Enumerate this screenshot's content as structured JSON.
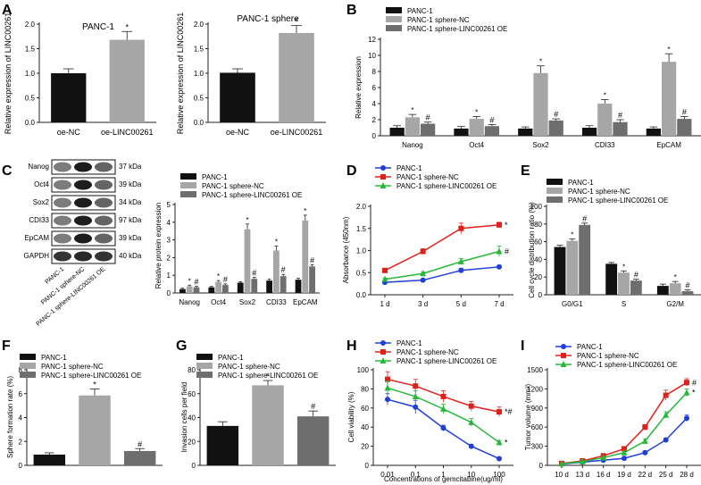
{
  "colors": {
    "black": "#111111",
    "lightgray": "#a6a6a6",
    "darkgray": "#6e6e6e",
    "blue": "#1f3fd6",
    "red": "#e0201b",
    "green": "#27b83a"
  },
  "chart_data": [
    {
      "id": "A1",
      "panel": "A",
      "type": "bar",
      "title": "PANC-1",
      "ylabel": "Relative expression of LINC00261",
      "categories": [
        "oe-NC",
        "oe-LINC00261"
      ],
      "values": [
        1.0,
        1.68
      ],
      "errors": [
        0.09,
        0.17
      ],
      "colors": [
        "black",
        "lightgray"
      ],
      "marks": [
        "",
        "*"
      ],
      "ylim": [
        0,
        2
      ]
    },
    {
      "id": "A2",
      "type": "bar",
      "title": "PANC-1 sphere",
      "ylabel": "Relative expression of LINC00261",
      "categories": [
        "oe-NC",
        "oe-LINC00261"
      ],
      "values": [
        1.01,
        1.82
      ],
      "errors": [
        0.08,
        0.15
      ],
      "colors": [
        "black",
        "lightgray"
      ],
      "marks": [
        "",
        "*"
      ],
      "ylim": [
        0,
        2
      ]
    },
    {
      "id": "B",
      "panel": "B",
      "type": "bar",
      "ylabel": "Relative expression",
      "categories": [
        "Nanog",
        "Oct4",
        "Sox2",
        "CDI33",
        "EpCAM"
      ],
      "yticks": [
        0,
        2,
        4,
        6,
        8,
        10,
        12
      ],
      "ylim": [
        0,
        12
      ],
      "legend": [
        "PANC-1",
        "PANC-1 sphere-NC",
        "PANC-1 sphere-LINC00261 OE"
      ],
      "series": [
        {
          "name": "PANC-1",
          "color": "black",
          "values": [
            1.0,
            0.9,
            0.9,
            1.0,
            0.9
          ],
          "errors": [
            0.25,
            0.25,
            0.2,
            0.25,
            0.2
          ],
          "marks": [
            "",
            "",
            "",
            "",
            ""
          ]
        },
        {
          "name": "PANC-1 sphere-NC",
          "color": "lightgray",
          "values": [
            2.3,
            2.1,
            7.8,
            4.0,
            9.2
          ],
          "errors": [
            0.35,
            0.3,
            0.9,
            0.5,
            1.0
          ],
          "marks": [
            "*",
            "*",
            "*",
            "*",
            "*"
          ]
        },
        {
          "name": "PANC-1 sphere-LINC00261 OE",
          "color": "darkgray",
          "values": [
            1.5,
            1.2,
            1.9,
            1.7,
            2.1
          ],
          "errors": [
            0.2,
            0.2,
            0.2,
            0.3,
            0.3
          ],
          "marks": [
            "#",
            "#",
            "#",
            "#",
            "#"
          ]
        }
      ]
    },
    {
      "id": "C",
      "panel": "C",
      "type": "bar",
      "ylabel": "Relative protein expression",
      "categories": [
        "Nanog",
        "Oct4",
        "Sox2",
        "CDI33",
        "EpCAM"
      ],
      "yticks": [
        0,
        1,
        2,
        3,
        4,
        5
      ],
      "ylim": [
        0,
        5
      ],
      "legend": [
        "PANC-1",
        "PANC-1 sphere-NC",
        "PANC-1 sphere-LINC00261 OE"
      ],
      "series": [
        {
          "name": "PANC-1",
          "color": "black",
          "values": [
            0.22,
            0.32,
            0.58,
            0.7,
            0.75
          ],
          "errors": [
            0.05,
            0.05,
            0.06,
            0.08,
            0.08
          ],
          "marks": [
            "",
            "",
            "",
            "",
            ""
          ]
        },
        {
          "name": "PANC-1 sphere-NC",
          "color": "lightgray",
          "values": [
            0.38,
            0.62,
            3.6,
            2.4,
            4.1
          ],
          "errors": [
            0.06,
            0.08,
            0.3,
            0.25,
            0.3
          ],
          "marks": [
            "*",
            "*",
            "*",
            "*",
            "*"
          ]
        },
        {
          "name": "PANC-1 sphere-LINC00261 OE",
          "color": "darkgray",
          "values": [
            0.32,
            0.45,
            0.8,
            0.95,
            1.5
          ],
          "errors": [
            0.05,
            0.06,
            0.08,
            0.1,
            0.1
          ],
          "marks": [
            "#",
            "#",
            "#",
            "#",
            "#"
          ]
        }
      ]
    },
    {
      "id": "D",
      "panel": "D",
      "type": "line",
      "ylabel": "Absorbance (450nm)",
      "categories": [
        "1 d",
        "3 d",
        "5 d",
        "7 d"
      ],
      "yticks": [
        0.0,
        0.5,
        1.0,
        1.5,
        2.0
      ],
      "ylim": [
        0,
        2
      ],
      "legend": [
        "PANC-1",
        "PANC-1 sphere-NC",
        "PANC-1 sphere-LINC00261 OE"
      ],
      "series": [
        {
          "name": "PANC-1",
          "color": "blue",
          "marker": "circle",
          "values": [
            0.28,
            0.33,
            0.55,
            0.63
          ],
          "errors": [
            0.03,
            0.03,
            0.05,
            0.04
          ],
          "mark": ""
        },
        {
          "name": "PANC-1 sphere-NC",
          "color": "red",
          "marker": "square",
          "values": [
            0.55,
            0.98,
            1.5,
            1.58
          ],
          "errors": [
            0.03,
            0.06,
            0.12,
            0.06
          ],
          "mark": "*"
        },
        {
          "name": "PANC-1 sphere-LINC00261 OE",
          "color": "green",
          "marker": "triangle",
          "values": [
            0.35,
            0.48,
            0.75,
            0.98
          ],
          "errors": [
            0.03,
            0.04,
            0.07,
            0.12
          ],
          "mark": "#"
        }
      ]
    },
    {
      "id": "E",
      "panel": "E",
      "type": "bar",
      "ylabel": "Cell cycle distribution ratio (%)",
      "categories": [
        "G0/G1",
        "S",
        "G2/M"
      ],
      "yticks": [
        0,
        20,
        40,
        60,
        80,
        100
      ],
      "ylim": [
        0,
        100
      ],
      "legend": [
        "PANC-1",
        "PANC-1 sphere-NC",
        "PANC-1 sphere-LINC00261 OE"
      ],
      "series": [
        {
          "name": "PANC-1",
          "color": "black",
          "values": [
            54,
            35,
            10
          ],
          "errors": [
            2,
            1.5,
            2
          ],
          "marks": [
            "",
            "",
            ""
          ]
        },
        {
          "name": "PANC-1 sphere-NC",
          "color": "lightgray",
          "values": [
            61,
            25,
            13
          ],
          "errors": [
            2,
            2,
            2
          ],
          "marks": [
            "*",
            "*",
            "*"
          ]
        },
        {
          "name": "PANC-1 sphere-LINC00261 OE",
          "color": "darkgray",
          "values": [
            79,
            16,
            4
          ],
          "errors": [
            2,
            1.5,
            1.5
          ],
          "marks": [
            "#",
            "#",
            "#"
          ]
        }
      ]
    },
    {
      "id": "F",
      "panel": "F",
      "type": "bar",
      "ylabel": "Sphere formation rate (%)",
      "categories": [
        "PANC-1",
        "PANC-1 sphere-NC",
        "PANC-1 sphere-LINC00261 OE"
      ],
      "values": [
        0.9,
        5.85,
        1.2
      ],
      "errors": [
        0.15,
        0.55,
        0.2
      ],
      "colors": [
        "black",
        "lightgray",
        "darkgray"
      ],
      "marks": [
        "",
        "*",
        "#"
      ],
      "yticks": [
        0,
        2,
        4,
        6,
        8
      ],
      "ylim": [
        0,
        8
      ],
      "legend": [
        "PANC-1",
        "PANC-1 sphere-NC",
        "PANC-1 sphere-LINC00261 OE"
      ]
    },
    {
      "id": "G",
      "panel": "G",
      "type": "bar",
      "ylabel": "Invasion cells per field",
      "categories": [
        "PANC-1",
        "PANC-1 sphere-NC",
        "PANC-1 sphere-LINC00261 OE"
      ],
      "values": [
        33,
        67,
        41
      ],
      "errors": [
        3.5,
        4,
        4.5
      ],
      "colors": [
        "black",
        "lightgray",
        "darkgray"
      ],
      "marks": [
        "",
        "*",
        "#"
      ],
      "yticks": [
        0,
        20,
        40,
        60,
        80
      ],
      "ylim": [
        0,
        80
      ],
      "legend": [
        "PANC-1",
        "PANC-1 sphere-NC",
        "PANC-1 sphere-LINC00261 OE"
      ]
    },
    {
      "id": "H",
      "panel": "H",
      "type": "line",
      "ylabel": "Cell viability (%)",
      "xlabel": "Concentrations of gemcitabine(ug/ml)",
      "categories": [
        "0.01",
        "0.1",
        "1",
        "10",
        "100"
      ],
      "yticks": [
        0,
        20,
        40,
        60,
        80,
        100
      ],
      "ylim": [
        0,
        100
      ],
      "legend": [
        "PANC-1",
        "PANC-1 sphere-NC",
        "PANC-1 sphere-LINC00261 OE"
      ],
      "series": [
        {
          "name": "PANC-1",
          "color": "blue",
          "marker": "circle",
          "values": [
            69,
            61,
            39,
            20,
            7
          ],
          "errors": [
            6,
            7,
            3,
            2,
            1
          ],
          "mark": ""
        },
        {
          "name": "PANC-1 sphere-NC",
          "color": "red",
          "marker": "square",
          "values": [
            90,
            83,
            72,
            62,
            56
          ],
          "errors": [
            8,
            7,
            6,
            5,
            5
          ],
          "mark": "*#"
        },
        {
          "name": "PANC-1 sphere-LINC00261 OE",
          "color": "green",
          "marker": "triangle",
          "values": [
            81,
            72,
            59,
            45,
            24
          ],
          "errors": [
            7,
            6,
            5,
            4,
            2
          ],
          "mark": "*"
        }
      ]
    },
    {
      "id": "I",
      "panel": "I",
      "type": "line",
      "ylabel": "Tumor volume (mm³)",
      "categories": [
        "10 d",
        "13 d",
        "16 d",
        "19 d",
        "22 d",
        "25 d",
        "28 d"
      ],
      "yticks": [
        0,
        300,
        600,
        900,
        1200,
        1500
      ],
      "ylim": [
        0,
        1500
      ],
      "legend": [
        "PANC-1",
        "PANC-1 sphere-NC",
        "PANC-1 sphere-LINC00261 OE"
      ],
      "series": [
        {
          "name": "PANC-1",
          "color": "blue",
          "marker": "circle",
          "values": [
            20,
            50,
            80,
            110,
            200,
            400,
            740
          ],
          "errors": [
            5,
            8,
            10,
            15,
            20,
            30,
            50
          ],
          "mark": ""
        },
        {
          "name": "PANC-1 sphere-NC",
          "color": "red",
          "marker": "square",
          "values": [
            30,
            70,
            150,
            260,
            600,
            1100,
            1300
          ],
          "errors": [
            5,
            8,
            15,
            25,
            40,
            80,
            60
          ],
          "mark": "#"
        },
        {
          "name": "PANC-1 sphere-LINC00261 OE",
          "color": "green",
          "marker": "triangle",
          "values": [
            25,
            60,
            120,
            200,
            380,
            790,
            1140
          ],
          "errors": [
            5,
            8,
            12,
            20,
            30,
            50,
            60
          ],
          "mark": "*"
        }
      ]
    }
  ],
  "western_blot": {
    "bands": [
      {
        "name": "Nanog",
        "kda": "37 kDa"
      },
      {
        "name": "Oct4",
        "kda": "39 kDa"
      },
      {
        "name": "Sox2",
        "kda": "34 kDa"
      },
      {
        "name": "CDI33",
        "kda": "97 kDa"
      },
      {
        "name": "EpCAM",
        "kda": "39 kDa"
      },
      {
        "name": "GAPDH",
        "kda": "40 kDa"
      }
    ],
    "lanes": [
      "PANC-1",
      "PANC-1 sphere-NC",
      "PANC-1 sphere-LINC00261 OE"
    ]
  }
}
